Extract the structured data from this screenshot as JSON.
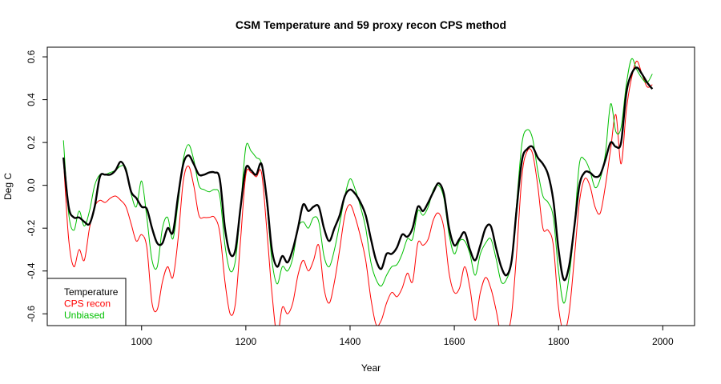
{
  "chart_data": {
    "type": "line",
    "title": "CSM Temperature and 59 proxy recon CPS method",
    "xlabel": "Year",
    "ylabel": "Deg C",
    "xlim": [
      819,
      2061
    ],
    "ylim": [
      -0.655,
      0.645
    ],
    "x_ticks": [
      1000,
      1200,
      1400,
      1600,
      1800,
      2000
    ],
    "x_tick_labels": [
      "1000",
      "1200",
      "1400",
      "1600",
      "1800",
      "2000"
    ],
    "y_ticks": [
      -0.6,
      -0.4,
      -0.2,
      0.0,
      0.2,
      0.4,
      0.6
    ],
    "y_tick_labels": [
      "-0.6",
      "-0.4",
      "-0.2",
      "0.0",
      "0.2",
      "0.4",
      "0.6"
    ],
    "grid": false,
    "legend_position": "bottom-left",
    "series": [
      {
        "name": "Temperature",
        "color": "#000000",
        "x": [
          850,
          860,
          870,
          880,
          890,
          900,
          910,
          920,
          930,
          940,
          950,
          960,
          970,
          980,
          990,
          1000,
          1010,
          1020,
          1030,
          1040,
          1050,
          1060,
          1070,
          1080,
          1090,
          1100,
          1110,
          1120,
          1130,
          1140,
          1150,
          1160,
          1170,
          1180,
          1190,
          1200,
          1210,
          1220,
          1230,
          1240,
          1250,
          1260,
          1270,
          1280,
          1290,
          1300,
          1310,
          1320,
          1330,
          1340,
          1350,
          1360,
          1370,
          1380,
          1390,
          1400,
          1410,
          1420,
          1430,
          1440,
          1450,
          1460,
          1470,
          1480,
          1490,
          1500,
          1510,
          1520,
          1530,
          1540,
          1550,
          1560,
          1570,
          1580,
          1590,
          1600,
          1610,
          1620,
          1630,
          1640,
          1650,
          1660,
          1670,
          1680,
          1690,
          1700,
          1710,
          1720,
          1730,
          1740,
          1750,
          1760,
          1770,
          1780,
          1790,
          1800,
          1810,
          1820,
          1830,
          1840,
          1850,
          1860,
          1870,
          1880,
          1890,
          1900,
          1910,
          1920,
          1930,
          1940,
          1950,
          1960,
          1970,
          1980
        ],
        "values": [
          0.13,
          -0.1,
          -0.15,
          -0.15,
          -0.17,
          -0.18,
          -0.1,
          0.04,
          0.05,
          0.05,
          0.07,
          0.11,
          0.07,
          -0.03,
          -0.06,
          -0.1,
          -0.11,
          -0.2,
          -0.27,
          -0.27,
          -0.2,
          -0.22,
          -0.05,
          0.1,
          0.14,
          0.1,
          0.05,
          0.05,
          0.06,
          0.06,
          0.03,
          -0.2,
          -0.32,
          -0.3,
          -0.1,
          0.08,
          0.07,
          0.05,
          0.1,
          -0.06,
          -0.3,
          -0.38,
          -0.33,
          -0.36,
          -0.3,
          -0.2,
          -0.09,
          -0.12,
          -0.1,
          -0.1,
          -0.2,
          -0.26,
          -0.2,
          -0.14,
          -0.05,
          -0.02,
          -0.04,
          -0.08,
          -0.14,
          -0.25,
          -0.35,
          -0.39,
          -0.32,
          -0.32,
          -0.29,
          -0.23,
          -0.24,
          -0.2,
          -0.1,
          -0.12,
          -0.08,
          -0.03,
          0.01,
          -0.04,
          -0.2,
          -0.28,
          -0.25,
          -0.22,
          -0.3,
          -0.35,
          -0.28,
          -0.2,
          -0.19,
          -0.29,
          -0.38,
          -0.42,
          -0.35,
          -0.1,
          0.12,
          0.17,
          0.18,
          0.13,
          0.1,
          0.05,
          -0.07,
          -0.3,
          -0.44,
          -0.38,
          -0.2,
          0.0,
          0.06,
          0.06,
          0.04,
          0.05,
          0.12,
          0.2,
          0.18,
          0.2,
          0.43,
          0.52,
          0.55,
          0.52,
          0.48,
          0.45
        ]
      },
      {
        "name": "CPS recon",
        "color": "#ff0000",
        "x": [
          850,
          860,
          870,
          880,
          890,
          900,
          910,
          920,
          930,
          940,
          950,
          960,
          970,
          980,
          990,
          1000,
          1010,
          1020,
          1030,
          1040,
          1050,
          1060,
          1070,
          1080,
          1090,
          1100,
          1110,
          1120,
          1130,
          1140,
          1150,
          1160,
          1170,
          1180,
          1190,
          1200,
          1210,
          1220,
          1230,
          1240,
          1250,
          1260,
          1270,
          1280,
          1290,
          1300,
          1310,
          1320,
          1330,
          1340,
          1350,
          1360,
          1370,
          1380,
          1390,
          1400,
          1410,
          1420,
          1430,
          1440,
          1450,
          1460,
          1470,
          1480,
          1490,
          1500,
          1510,
          1520,
          1530,
          1540,
          1550,
          1560,
          1570,
          1580,
          1590,
          1600,
          1610,
          1620,
          1630,
          1640,
          1650,
          1660,
          1670,
          1680,
          1690,
          1700,
          1710,
          1720,
          1730,
          1740,
          1750,
          1760,
          1770,
          1780,
          1790,
          1800,
          1810,
          1820,
          1830,
          1840,
          1850,
          1860,
          1870,
          1880,
          1890,
          1900,
          1910,
          1920,
          1930,
          1940,
          1950,
          1960,
          1970,
          1980
        ],
        "values": [
          0.12,
          -0.25,
          -0.38,
          -0.3,
          -0.35,
          -0.2,
          -0.1,
          -0.07,
          -0.08,
          -0.06,
          -0.05,
          -0.07,
          -0.1,
          -0.18,
          -0.26,
          -0.23,
          -0.29,
          -0.55,
          -0.58,
          -0.45,
          -0.38,
          -0.43,
          -0.25,
          0.02,
          0.09,
          0.0,
          -0.14,
          -0.15,
          -0.15,
          -0.15,
          -0.22,
          -0.45,
          -0.6,
          -0.55,
          -0.25,
          0.05,
          0.06,
          0.04,
          0.06,
          -0.2,
          -0.5,
          -0.7,
          -0.57,
          -0.6,
          -0.55,
          -0.42,
          -0.35,
          -0.4,
          -0.35,
          -0.28,
          -0.48,
          -0.55,
          -0.45,
          -0.3,
          -0.14,
          -0.09,
          -0.15,
          -0.24,
          -0.35,
          -0.53,
          -0.65,
          -0.63,
          -0.55,
          -0.5,
          -0.52,
          -0.48,
          -0.41,
          -0.45,
          -0.27,
          -0.28,
          -0.25,
          -0.16,
          -0.13,
          -0.2,
          -0.41,
          -0.5,
          -0.48,
          -0.38,
          -0.48,
          -0.63,
          -0.5,
          -0.43,
          -0.48,
          -0.58,
          -0.7,
          -0.7,
          -0.6,
          -0.3,
          0.05,
          0.16,
          0.15,
          0.0,
          -0.2,
          -0.21,
          -0.28,
          -0.57,
          -0.68,
          -0.6,
          -0.35,
          -0.08,
          0.03,
          0.0,
          -0.1,
          -0.13,
          0.0,
          0.17,
          0.33,
          0.1,
          0.35,
          0.5,
          0.58,
          0.52,
          0.46,
          0.47
        ]
      },
      {
        "name": "Unbiased",
        "color": "#00c000",
        "x": [
          850,
          860,
          870,
          880,
          890,
          900,
          910,
          920,
          930,
          940,
          950,
          960,
          970,
          980,
          990,
          1000,
          1010,
          1020,
          1030,
          1040,
          1050,
          1060,
          1070,
          1080,
          1090,
          1100,
          1110,
          1120,
          1130,
          1140,
          1150,
          1160,
          1170,
          1180,
          1190,
          1200,
          1210,
          1220,
          1230,
          1240,
          1250,
          1260,
          1270,
          1280,
          1290,
          1300,
          1310,
          1320,
          1330,
          1340,
          1350,
          1360,
          1370,
          1380,
          1390,
          1400,
          1410,
          1420,
          1430,
          1440,
          1450,
          1460,
          1470,
          1480,
          1490,
          1500,
          1510,
          1520,
          1530,
          1540,
          1550,
          1560,
          1570,
          1580,
          1590,
          1600,
          1610,
          1620,
          1630,
          1640,
          1650,
          1660,
          1670,
          1680,
          1690,
          1700,
          1710,
          1720,
          1730,
          1740,
          1750,
          1760,
          1770,
          1780,
          1790,
          1800,
          1810,
          1820,
          1830,
          1840,
          1850,
          1860,
          1870,
          1880,
          1890,
          1900,
          1910,
          1920,
          1930,
          1940,
          1950,
          1960,
          1970,
          1980
        ],
        "values": [
          0.21,
          -0.13,
          -0.21,
          -0.12,
          -0.19,
          -0.12,
          0.0,
          0.05,
          0.05,
          0.06,
          0.07,
          0.09,
          0.08,
          -0.04,
          -0.1,
          0.02,
          -0.15,
          -0.35,
          -0.38,
          -0.2,
          -0.15,
          -0.25,
          -0.08,
          0.12,
          0.19,
          0.12,
          0.0,
          -0.02,
          -0.03,
          -0.02,
          -0.05,
          -0.28,
          -0.4,
          -0.35,
          -0.1,
          0.18,
          0.16,
          0.13,
          0.1,
          -0.08,
          -0.35,
          -0.46,
          -0.38,
          -0.4,
          -0.34,
          -0.2,
          -0.17,
          -0.2,
          -0.15,
          -0.17,
          -0.33,
          -0.38,
          -0.3,
          -0.18,
          -0.05,
          0.03,
          -0.02,
          -0.1,
          -0.2,
          -0.36,
          -0.44,
          -0.47,
          -0.42,
          -0.38,
          -0.37,
          -0.32,
          -0.25,
          -0.25,
          -0.12,
          -0.14,
          -0.1,
          -0.02,
          0.0,
          -0.06,
          -0.23,
          -0.32,
          -0.26,
          -0.26,
          -0.32,
          -0.42,
          -0.32,
          -0.27,
          -0.25,
          -0.34,
          -0.45,
          -0.44,
          -0.35,
          -0.07,
          0.2,
          0.26,
          0.22,
          0.07,
          -0.05,
          -0.08,
          -0.15,
          -0.4,
          -0.55,
          -0.43,
          -0.2,
          0.1,
          0.12,
          0.07,
          -0.01,
          0.03,
          0.15,
          0.38,
          0.25,
          0.27,
          0.47,
          0.59,
          0.54,
          0.5,
          0.48,
          0.52
        ]
      }
    ]
  }
}
